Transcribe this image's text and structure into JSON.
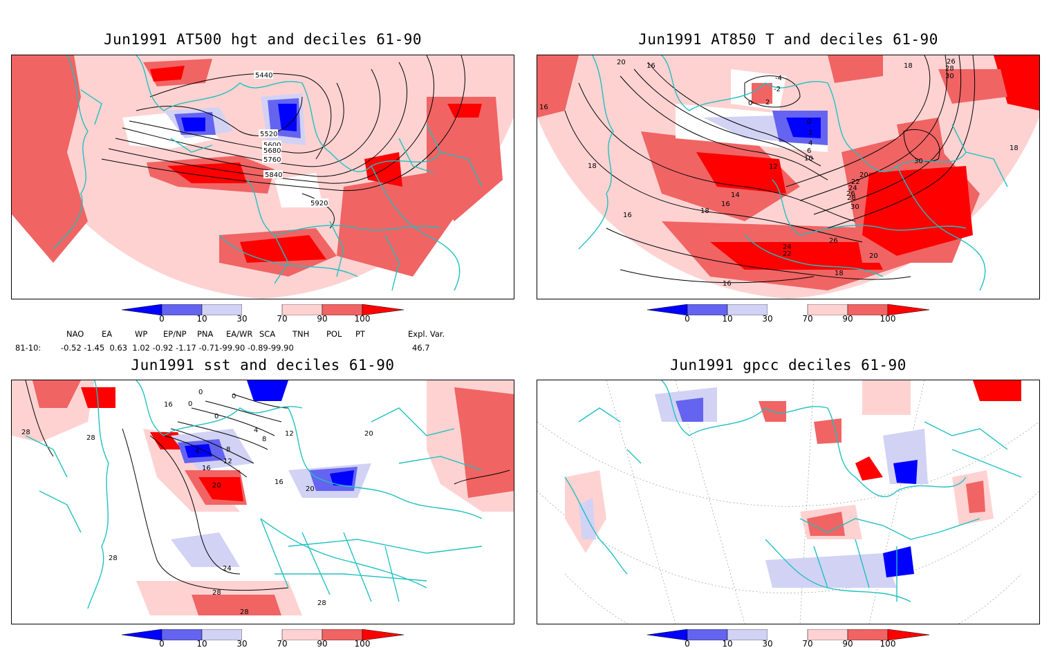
{
  "panels": [
    {
      "title": "Jun1991 AT500 hgt and deciles 61-90",
      "contour_labels": [
        "5440",
        "5520",
        "5600",
        "5680",
        "5760",
        "5840",
        "5920"
      ]
    },
    {
      "title": "Jun1991 AT850 T and deciles 61-90",
      "contour_labels": [
        "20",
        "16",
        "16",
        "18",
        "-4",
        "-2",
        "0",
        "2",
        "0",
        "2",
        "4",
        "6",
        "10",
        "12",
        "14",
        "16",
        "18",
        "16",
        "30",
        "18",
        "20",
        "22",
        "24",
        "26",
        "28",
        "30",
        "26",
        "24",
        "22",
        "20",
        "18",
        "16",
        "26",
        "28",
        "30",
        "18"
      ]
    },
    {
      "title": "Jun1991 sst and deciles 61-90",
      "contour_labels": [
        "28",
        "28",
        "16",
        "0",
        "0",
        "0",
        "0",
        "4",
        "8",
        "8",
        "12",
        "12",
        "16",
        "20",
        "16",
        "20",
        "24",
        "28",
        "28",
        "28",
        "28",
        "20",
        "4"
      ]
    },
    {
      "title": "Jun1991 gpcc deciles 61-90",
      "contour_labels": []
    }
  ],
  "colorbar": {
    "ticks": [
      "0",
      "10",
      "30",
      "70",
      "90",
      "100"
    ],
    "colors": [
      "#0000ff",
      "#6464f0",
      "#d2d2f5",
      "#ffffff",
      "#ffd2d2",
      "#f06464",
      "#ff0000"
    ]
  },
  "indices": {
    "headers": [
      "NAO",
      "EA",
      "WP",
      "EP/NP",
      "PNA",
      "EA/WR",
      "SCA",
      "TNH",
      "POL",
      "PT",
      "Expl. Var."
    ],
    "row_label": "81-10:",
    "values": "-0.52 -1.45  0.63  1.02 -0.92 -1.17 -0.71-99.90 -0.89-99.90",
    "expl_var": "46.7"
  },
  "colors": {
    "coast": "#20c0c0",
    "red": "#ff0000",
    "mid_red": "#f06464",
    "light_red": "#ffd2d2",
    "light_blue": "#d2d2f5",
    "mid_blue": "#6464f0",
    "blue": "#0000ff"
  }
}
